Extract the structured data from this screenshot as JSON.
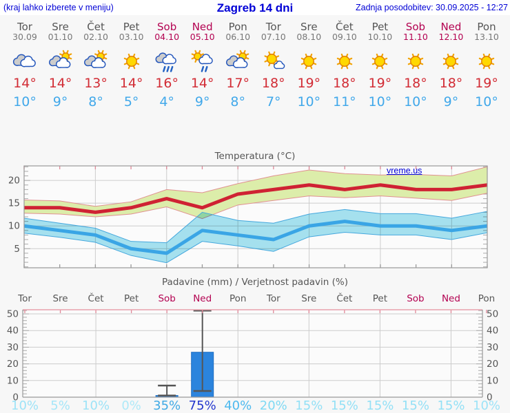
{
  "header": {
    "left": "(kraj lahko izberete v meniju)",
    "title": "Zagreb 14 dni",
    "right": "Zadnja posodobitev: 30.09.2025 - 12:27"
  },
  "watermark": "vreme.us",
  "colors": {
    "header_blue": "#0000d6",
    "weekday_gray": "#555555",
    "weekend_red": "#b30050",
    "tmax_red": "#d22c35",
    "tmin_blue": "#41a8ea",
    "max_band_fill": "#dcedaa",
    "max_band_edge": "#e09090",
    "min_band_fill": "#a8e4f2",
    "min_band_edge": "#44a7dd",
    "bar_blue": "#2b84dd",
    "whisker_gray": "#555555",
    "grid_gray": "#cccccc",
    "border_gray": "#999999",
    "pink_tick": "#e08898"
  },
  "days": [
    {
      "name": "Tor",
      "date": "30.09",
      "weekend": false,
      "icon": "cloud-cloud",
      "tmax": "14°",
      "tmin": "10°"
    },
    {
      "name": "Sre",
      "date": "01.10",
      "weekend": false,
      "icon": "sun-cloud",
      "tmax": "14°",
      "tmin": "9°"
    },
    {
      "name": "Čet",
      "date": "02.10",
      "weekend": false,
      "icon": "sun-cloud",
      "tmax": "13°",
      "tmin": "8°"
    },
    {
      "name": "Pet",
      "date": "03.10",
      "weekend": false,
      "icon": "sun",
      "tmax": "14°",
      "tmin": "5°"
    },
    {
      "name": "Sob",
      "date": "04.10",
      "weekend": true,
      "icon": "rain",
      "tmax": "16°",
      "tmin": "4°"
    },
    {
      "name": "Ned",
      "date": "05.10",
      "weekend": true,
      "icon": "sun-cloud-rain",
      "tmax": "14°",
      "tmin": "9°"
    },
    {
      "name": "Pon",
      "date": "06.10",
      "weekend": false,
      "icon": "sun-cloud",
      "tmax": "17°",
      "tmin": "8°"
    },
    {
      "name": "Tor",
      "date": "07.10",
      "weekend": false,
      "icon": "sun-small-cloud",
      "tmax": "18°",
      "tmin": "7°"
    },
    {
      "name": "Sre",
      "date": "08.10",
      "weekend": false,
      "icon": "sun",
      "tmax": "19°",
      "tmin": "10°"
    },
    {
      "name": "Čet",
      "date": "09.10",
      "weekend": false,
      "icon": "sun",
      "tmax": "18°",
      "tmin": "11°"
    },
    {
      "name": "Pet",
      "date": "10.10",
      "weekend": false,
      "icon": "sun",
      "tmax": "19°",
      "tmin": "10°"
    },
    {
      "name": "Sob",
      "date": "11.10",
      "weekend": true,
      "icon": "sun",
      "tmax": "18°",
      "tmin": "10°"
    },
    {
      "name": "Ned",
      "date": "12.10",
      "weekend": true,
      "icon": "sun",
      "tmax": "18°",
      "tmin": "9°"
    },
    {
      "name": "Pon",
      "date": "13.10",
      "weekend": false,
      "icon": "sun",
      "tmax": "19°",
      "tmin": "10°"
    }
  ],
  "chart_data": [
    {
      "type": "line",
      "title": "Temperatura (°C)",
      "x_labels": [
        "Tor",
        "Sre",
        "Čet",
        "Pet",
        "Sob",
        "Ned",
        "Pon",
        "Tor",
        "Sre",
        "Čet",
        "Pet",
        "Sob",
        "Ned",
        "Pon"
      ],
      "ylabel": "",
      "ylim": [
        0.8,
        23.2
      ],
      "yticks": [
        5,
        10,
        15,
        20
      ],
      "grid": true,
      "legend": "none",
      "series": [
        {
          "name": "max-temperature",
          "color": "#cf2233",
          "values": [
            14,
            14,
            13,
            14,
            16,
            14,
            17,
            18,
            19,
            18,
            19,
            18,
            18,
            19
          ]
        },
        {
          "name": "min-temperature",
          "color": "#3aa5e5",
          "values": [
            10,
            9,
            8,
            5,
            4,
            9,
            8,
            7,
            10,
            11,
            10,
            10,
            9,
            10
          ]
        }
      ],
      "bands": [
        {
          "name": "max-range",
          "fill": "#dcedaa",
          "edge": "#e09090",
          "upper": [
            15.7,
            15.5,
            14.3,
            15.3,
            18.0,
            17.3,
            19.3,
            21.0,
            22.3,
            21.5,
            21.2,
            21.3,
            21.0,
            23.0
          ],
          "lower": [
            12.8,
            12.6,
            12.0,
            12.6,
            14.2,
            11.6,
            14.6,
            15.6,
            16.6,
            16.2,
            16.6,
            16.1,
            15.6,
            17.2
          ]
        },
        {
          "name": "min-range",
          "fill": "#a8e4f2",
          "edge": "#44a7dd",
          "upper": [
            11.7,
            10.6,
            9.5,
            6.6,
            6.3,
            13.0,
            11.2,
            10.6,
            12.6,
            13.6,
            12.7,
            12.7,
            11.7,
            13.2
          ],
          "lower": [
            8.4,
            7.5,
            6.4,
            3.5,
            1.9,
            6.6,
            5.6,
            4.4,
            7.6,
            8.6,
            8.0,
            8.0,
            7.0,
            8.5
          ]
        }
      ]
    },
    {
      "type": "bar",
      "title": "Padavine (mm) / Verjetnost padavin (%)",
      "categories": [
        "Tor",
        "Sre",
        "Čet",
        "Pet",
        "Sob",
        "Ned",
        "Pon",
        "Tor",
        "Sre",
        "Čet",
        "Pet",
        "Sob",
        "Ned",
        "Pon"
      ],
      "values": [
        0,
        0,
        0,
        0,
        1,
        27,
        0,
        0,
        0,
        0,
        0,
        0,
        0,
        0
      ],
      "whiskers": [
        null,
        null,
        null,
        null,
        {
          "lo": 1,
          "hi": 7
        },
        {
          "lo": 3.7,
          "hi": 52
        },
        null,
        null,
        null,
        null,
        null,
        null,
        null,
        null
      ],
      "ylim": [
        0,
        52.5
      ],
      "yticks": [
        0,
        10,
        20,
        30,
        40,
        50
      ],
      "grid": true,
      "percents": [
        "10%",
        "5%",
        "10%",
        "0%",
        "35%",
        "75%",
        "40%",
        "20%",
        "15%",
        "15%",
        "15%",
        "15%",
        "15%",
        "10%"
      ],
      "percent_colors": [
        "#9de3f7",
        "#a5e6f8",
        "#9de3f7",
        "#aee9f8",
        "#3fa9e4",
        "#2336cd",
        "#4db9ee",
        "#7fd9f3",
        "#93e0f6",
        "#93e0f6",
        "#93e0f6",
        "#93e0f6",
        "#93e0f6",
        "#9de3f7"
      ]
    }
  ]
}
